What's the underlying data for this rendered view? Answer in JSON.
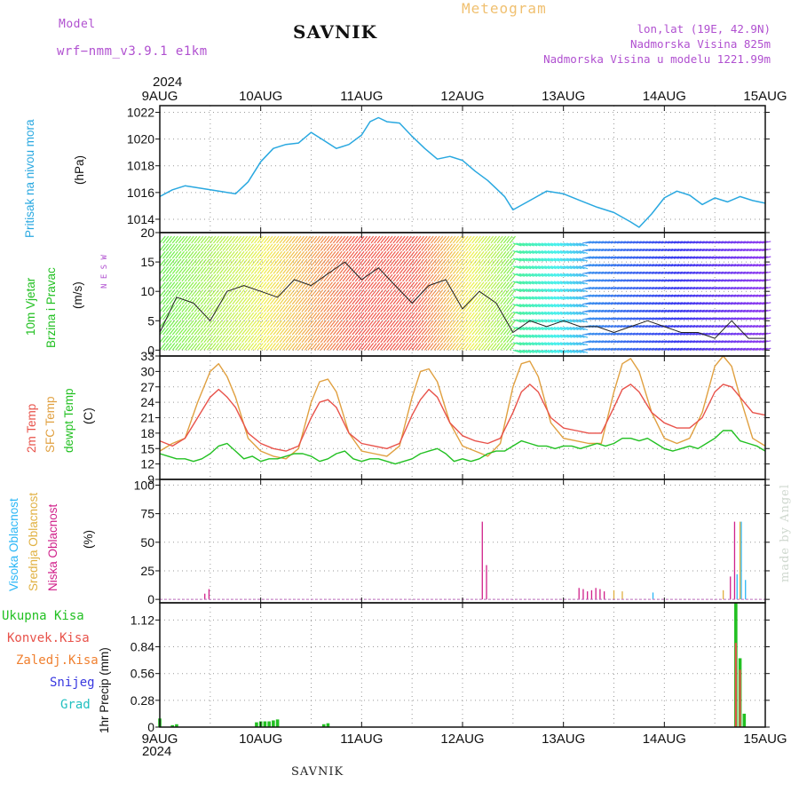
{
  "header": {
    "model_label": "Model",
    "model_name": "wrf−nmm_v3.9.1  e1km",
    "station": "SAVNIK",
    "meteogram": "Meteogram",
    "lonlat": "lon,lat (19E, 42.9N)",
    "elevation": "Nadmorska Visina 825m",
    "model_elevation": "Nadmorska Visina u modelu 1221.99m",
    "year_top": "2024",
    "year_bottom": "2024",
    "footer_station": "SAVNIK",
    "credit": "made by Angel"
  },
  "colors": {
    "pressure": "#29a8e0",
    "temp2m": "#e8524a",
    "sfc": "#e0a040",
    "dewpt": "#22c022",
    "high_cloud": "#29b6f6",
    "mid_cloud": "#e0b040",
    "low_cloud": "#d0208a",
    "total_precip": "#22c022",
    "conv_precip": "#e8524a"
  },
  "chart_data": [
    {
      "type": "line",
      "x_ticks": [
        "9AUG",
        "10AUG",
        "11AUG",
        "12AUG",
        "13AUG",
        "14AUG",
        "15AUG"
      ],
      "y_label": "(hPa)",
      "side_label": "Pritisak na nivou mora",
      "ylim": [
        1013,
        1022.5
      ],
      "y_ticks": [
        "1014",
        "1016",
        "1018",
        "1020",
        "1022"
      ],
      "grid": true,
      "series": [
        {
          "name": "Pritisak na nivou mora",
          "hours": [
            0,
            3,
            6,
            10,
            14,
            18,
            21,
            24,
            27,
            30,
            33,
            36,
            39,
            42,
            45,
            48,
            50,
            52,
            54,
            57,
            60,
            63,
            66,
            69,
            72,
            75,
            78,
            80,
            82,
            84,
            88,
            92,
            96,
            100,
            104,
            108,
            112,
            114,
            117,
            120,
            123,
            126,
            129,
            132,
            135,
            138,
            141,
            144
          ],
          "values": [
            1015.7,
            1016.2,
            1016.5,
            1016.3,
            1016.1,
            1015.9,
            1016.8,
            1018.3,
            1019.3,
            1019.6,
            1019.7,
            1020.5,
            1019.9,
            1019.3,
            1019.6,
            1020.3,
            1021.3,
            1021.6,
            1021.3,
            1021.2,
            1020.2,
            1019.3,
            1018.5,
            1018.7,
            1018.4,
            1017.6,
            1016.9,
            1016.3,
            1015.7,
            1014.7,
            1015.4,
            1016.1,
            1015.9,
            1015.4,
            1014.9,
            1014.5,
            1013.8,
            1013.4,
            1014.4,
            1015.6,
            1016.1,
            1015.8,
            1015.1,
            1015.6,
            1015.3,
            1015.7,
            1015.4,
            1015.2
          ]
        }
      ]
    },
    {
      "type": "line",
      "x_ticks": [
        "9AUG",
        "10AUG",
        "11AUG",
        "12AUG",
        "13AUG",
        "14AUG",
        "15AUG"
      ],
      "y_label": "(m/s)",
      "side_label_1": "10m Vjetar",
      "side_label_2": "Brzina i Pravac",
      "compass": "N  E  S  W",
      "ylim": [
        -1,
        20
      ],
      "y_ticks": [
        "0",
        "5",
        "10",
        "15",
        "20"
      ],
      "grid": true,
      "series": [
        {
          "name": "10m Vjetar",
          "hours": [
            0,
            4,
            8,
            12,
            16,
            20,
            24,
            28,
            32,
            36,
            40,
            44,
            48,
            52,
            56,
            60,
            64,
            68,
            72,
            76,
            80,
            84,
            88,
            92,
            96,
            100,
            104,
            108,
            112,
            116,
            120,
            124,
            128,
            132,
            136,
            140,
            144
          ],
          "values": [
            3,
            9,
            8,
            5,
            10,
            11,
            10,
            9,
            12,
            11,
            13,
            15,
            12,
            14,
            11,
            8,
            11,
            12,
            7,
            10,
            8,
            3,
            5,
            4,
            5,
            4,
            4,
            3,
            4,
            5,
            4,
            3,
            3,
            2,
            5,
            2,
            2
          ]
        }
      ]
    },
    {
      "type": "line",
      "x_ticks": [
        "9AUG",
        "10AUG",
        "11AUG",
        "12AUG",
        "13AUG",
        "14AUG",
        "15AUG"
      ],
      "y_label": "(C)",
      "side_labels": [
        "2m Temp",
        "SFC Temp",
        "dewpt Temp"
      ],
      "ylim": [
        9,
        33
      ],
      "y_ticks": [
        "9",
        "12",
        "15",
        "18",
        "21",
        "24",
        "27",
        "30",
        "33"
      ],
      "grid": true,
      "series": [
        {
          "name": "2m Temp",
          "hours": [
            0,
            3,
            6,
            9,
            12,
            14,
            16,
            18,
            21,
            24,
            27,
            30,
            33,
            36,
            38,
            40,
            42,
            45,
            48,
            51,
            54,
            57,
            60,
            62,
            64,
            66,
            69,
            72,
            75,
            78,
            81,
            84,
            86,
            88,
            90,
            93,
            96,
            99,
            102,
            105,
            108,
            110,
            112,
            114,
            117,
            120,
            123,
            126,
            129,
            132,
            134,
            136,
            138,
            141,
            144
          ],
          "values": [
            16.5,
            15.5,
            17,
            21,
            25,
            26.5,
            25,
            23,
            18,
            16,
            15,
            14.5,
            15.5,
            21,
            24,
            24.5,
            23,
            18,
            16,
            15.5,
            15,
            16,
            21.5,
            24.5,
            26.5,
            25,
            20,
            17.5,
            16.5,
            16,
            17,
            22,
            26,
            27.5,
            26,
            21,
            19,
            18.5,
            18,
            18,
            23,
            26.5,
            27.5,
            26,
            22,
            20,
            19,
            19,
            21,
            26,
            27.5,
            27,
            25,
            22,
            21.5
          ]
        },
        {
          "name": "SFC Temp",
          "hours": [
            0,
            3,
            6,
            9,
            12,
            14,
            16,
            18,
            21,
            24,
            27,
            30,
            33,
            36,
            38,
            40,
            42,
            45,
            48,
            51,
            54,
            57,
            60,
            62,
            64,
            66,
            69,
            72,
            75,
            78,
            81,
            84,
            86,
            88,
            90,
            93,
            96,
            99,
            102,
            105,
            108,
            110,
            112,
            114,
            117,
            120,
            123,
            126,
            129,
            132,
            134,
            136,
            138,
            141,
            144
          ],
          "values": [
            14.5,
            16,
            17,
            24,
            30,
            31.5,
            29,
            25,
            17,
            14.5,
            13.5,
            13,
            15,
            24,
            28,
            28.5,
            26,
            18,
            14.5,
            14,
            13.5,
            15.5,
            25,
            30,
            30.5,
            28,
            20,
            15.5,
            14.5,
            13.5,
            16,
            27,
            31.5,
            32,
            29,
            20,
            17,
            16.5,
            16,
            16,
            26,
            31.5,
            32.5,
            30,
            22,
            17,
            16,
            17,
            22,
            31,
            33,
            31,
            25,
            17,
            15.5
          ]
        },
        {
          "name": "dewpt Temp",
          "hours": [
            0,
            2,
            4,
            6,
            8,
            10,
            12,
            14,
            16,
            18,
            20,
            22,
            24,
            26,
            28,
            30,
            32,
            34,
            36,
            38,
            40,
            42,
            44,
            46,
            48,
            50,
            52,
            54,
            56,
            58,
            60,
            62,
            64,
            66,
            68,
            70,
            72,
            74,
            76,
            78,
            80,
            82,
            84,
            86,
            88,
            90,
            92,
            94,
            96,
            98,
            100,
            102,
            104,
            106,
            108,
            110,
            112,
            114,
            116,
            118,
            120,
            122,
            124,
            126,
            128,
            130,
            132,
            134,
            136,
            138,
            140,
            142,
            144
          ],
          "values": [
            14,
            13.5,
            13,
            13,
            12.5,
            13,
            14,
            15.5,
            16,
            14.5,
            13,
            13.5,
            12.5,
            13,
            13,
            13.5,
            14,
            14,
            13.5,
            12.5,
            13,
            14,
            14.5,
            13,
            12.5,
            13,
            13,
            12.5,
            12,
            12.5,
            13,
            14,
            14.5,
            15,
            14,
            12.5,
            13,
            12.5,
            13,
            14,
            14.5,
            14.5,
            15.5,
            16.5,
            16,
            15.5,
            15.5,
            15,
            15.5,
            15.5,
            15,
            15.5,
            16,
            15.5,
            16,
            17,
            17,
            16.5,
            17,
            16,
            15,
            14.5,
            15,
            15.5,
            15,
            16,
            17,
            18.5,
            18.5,
            16.5,
            16,
            15.5,
            14.5
          ]
        }
      ]
    },
    {
      "type": "bar",
      "x_ticks": [
        "9AUG",
        "10AUG",
        "11AUG",
        "12AUG",
        "13AUG",
        "14AUG",
        "15AUG"
      ],
      "y_label": "(%)",
      "side_labels": [
        "Visoka Oblacnost",
        "Srednja Oblacnost",
        "Niska Oblacnost"
      ],
      "ylim": [
        -3,
        105
      ],
      "y_ticks": [
        "0",
        "25",
        "50",
        "75",
        "100"
      ],
      "grid": true,
      "series": [
        {
          "name": "Visoka Oblacnost",
          "hours": [
            117,
            137,
            138,
            139
          ],
          "values": [
            6,
            22,
            68,
            17
          ]
        },
        {
          "name": "Srednja Oblacnost",
          "hours": [
            108,
            110,
            134,
            138
          ],
          "values": [
            8,
            7,
            8,
            68
          ]
        },
        {
          "name": "Niska Oblacnost",
          "hours": [
            11,
            12,
            77,
            78,
            100,
            101,
            102,
            103,
            104,
            105,
            106,
            136,
            137
          ],
          "values": [
            5,
            9,
            68,
            30,
            10,
            9,
            7,
            8,
            10,
            9,
            7,
            20,
            68
          ]
        }
      ]
    },
    {
      "type": "bar",
      "x_ticks": [
        "9AUG",
        "10AUG",
        "11AUG",
        "12AUG",
        "13AUG",
        "14AUG",
        "15AUG"
      ],
      "y_label": "1hr Precip (mm)",
      "side_labels": [
        "Ukupna Kisa",
        "Konvek.Kisa",
        "Zaledj.Kisa",
        "Snijeg",
        "Grad"
      ],
      "ylim": [
        0,
        1.3
      ],
      "y_ticks": [
        "0",
        "0.28",
        "0.56",
        "0.84",
        "1.12"
      ],
      "grid": true,
      "series": [
        {
          "name": "Ukupna Kisa",
          "hours": [
            0,
            3,
            4,
            23,
            24,
            25,
            26,
            27,
            28,
            39,
            40,
            137,
            138,
            139
          ],
          "values": [
            0.09,
            0.02,
            0.03,
            0.05,
            0.06,
            0.06,
            0.06,
            0.07,
            0.08,
            0.03,
            0.04,
            1.3,
            0.72,
            0.14
          ]
        },
        {
          "name": "Konvek.Kisa",
          "hours": [
            137,
            138
          ],
          "values": [
            0.88,
            0.6
          ]
        }
      ]
    }
  ]
}
